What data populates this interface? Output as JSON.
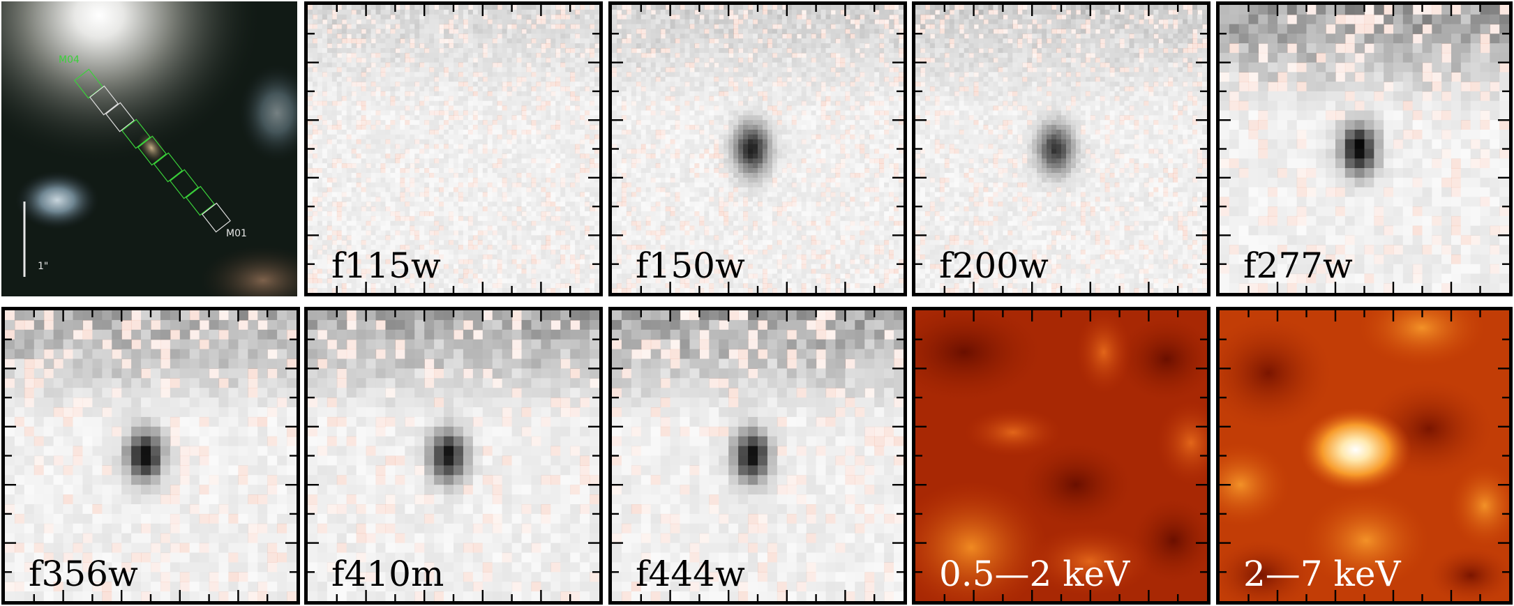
{
  "rgb_panel": {
    "slit_top_label": "M04",
    "slit_bottom_label": "M01",
    "scale_bar_label": "1\""
  },
  "panels": [
    {
      "id": "f115w",
      "label": "f115w",
      "kind": "nircam",
      "source_strength": 0.0
    },
    {
      "id": "f150w",
      "label": "f150w",
      "kind": "nircam",
      "source_strength": 0.85
    },
    {
      "id": "f200w",
      "label": "f200w",
      "kind": "nircam",
      "source_strength": 0.75
    },
    {
      "id": "f277w",
      "label": "f277w",
      "kind": "nircam",
      "source_strength": 1.0
    },
    {
      "id": "f356w",
      "label": "f356w",
      "kind": "nircam",
      "source_strength": 0.95
    },
    {
      "id": "f410m",
      "label": "f410m",
      "kind": "nircam",
      "source_strength": 0.9
    },
    {
      "id": "f444w",
      "label": "f444w",
      "kind": "nircam",
      "source_strength": 0.95
    },
    {
      "id": "xray-soft",
      "label": "0.5—2 keV",
      "kind": "xray"
    },
    {
      "id": "xray-hard",
      "label": "2—7 keV",
      "kind": "xray"
    }
  ],
  "colors": {
    "frame": "#000000",
    "xray_dark": "#6e0f00",
    "xray_mid": "#d54a05",
    "xray_bright": "#fff4d8",
    "slit_green": "#3ad13a",
    "slit_white": "#dddddd"
  }
}
